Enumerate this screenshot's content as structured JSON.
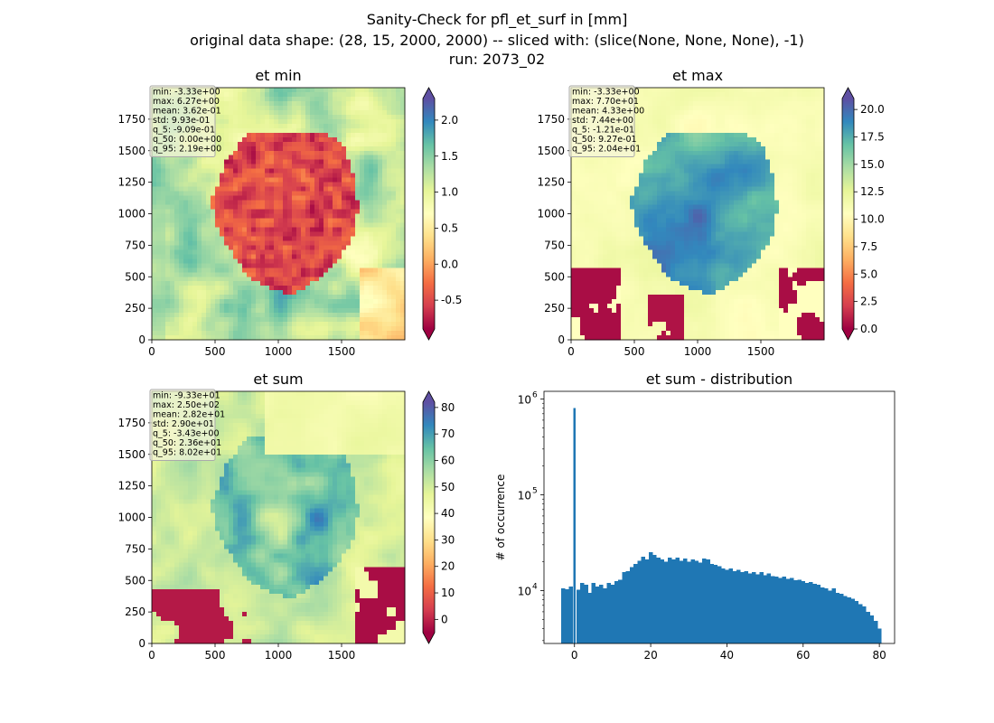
{
  "figure": {
    "title_lines": [
      "Sanity-Check for pfl_et_surf in [mm]",
      "original data shape: (28, 15, 2000, 2000) -- sliced with: (slice(None, None, None), -1)",
      "run: 2073_02"
    ]
  },
  "chart_data": [
    {
      "type": "heatmap",
      "title": "et min",
      "colormap": "Spectral",
      "x_ticks": [
        "0",
        "500",
        "1000",
        "1500"
      ],
      "y_ticks": [
        "0",
        "250",
        "500",
        "750",
        "1000",
        "1250",
        "1500",
        "1750"
      ],
      "xlim": [
        0,
        2000
      ],
      "ylim": [
        0,
        2000
      ],
      "color_range": [
        -0.9,
        2.3
      ],
      "colorbar_ticks": [
        "-0.5",
        "0.0",
        "0.5",
        "1.0",
        "1.5",
        "2.0"
      ],
      "colorbar_tick_values": [
        -0.5,
        0.0,
        0.5,
        1.0,
        1.5,
        2.0
      ],
      "stats": [
        "min: -3.33e+00",
        "max: 6.27e+00",
        "mean: 3.62e-01",
        "std: 9.93e-01",
        "q_5: -9.09e-01",
        "q_50: 0.00e+00",
        "q_95: 2.19e+00"
      ]
    },
    {
      "type": "heatmap",
      "title": "et max",
      "colormap": "Spectral",
      "x_ticks": [
        "0",
        "500",
        "1000",
        "1500"
      ],
      "y_ticks": [
        "0",
        "250",
        "500",
        "750",
        "1000",
        "1250",
        "1500",
        "1750"
      ],
      "xlim": [
        0,
        2000
      ],
      "ylim": [
        0,
        2000
      ],
      "color_range": [
        0,
        21
      ],
      "colorbar_ticks": [
        "0.0",
        "2.5",
        "5.0",
        "7.5",
        "10.0",
        "12.5",
        "15.0",
        "17.5",
        "20.0"
      ],
      "colorbar_tick_values": [
        0,
        2.5,
        5,
        7.5,
        10,
        12.5,
        15,
        17.5,
        20
      ],
      "stats": [
        "min: -3.33e+00",
        "max: 7.70e+01",
        "mean: 4.33e+00",
        "std: 7.44e+00",
        "q_5: -1.21e-01",
        "q_50: 9.27e-01",
        "q_95: 2.04e+01"
      ]
    },
    {
      "type": "heatmap",
      "title": "et sum",
      "colormap": "Spectral",
      "x_ticks": [
        "0",
        "500",
        "1000",
        "1500"
      ],
      "y_ticks": [
        "0",
        "250",
        "500",
        "750",
        "1000",
        "1250",
        "1500",
        "1750"
      ],
      "xlim": [
        0,
        2000
      ],
      "ylim": [
        0,
        2000
      ],
      "color_range": [
        -5,
        82
      ],
      "colorbar_ticks": [
        "0",
        "10",
        "20",
        "30",
        "40",
        "50",
        "60",
        "70",
        "80"
      ],
      "colorbar_tick_values": [
        0,
        10,
        20,
        30,
        40,
        50,
        60,
        70,
        80
      ],
      "stats": [
        "min: -9.33e+01",
        "max: 2.50e+02",
        "mean: 2.82e+01",
        "std: 2.90e+01",
        "q_5: -3.43e+00",
        "q_50: 2.36e+01",
        "q_95: 8.02e+01"
      ]
    },
    {
      "type": "bar",
      "title": "et sum - distribution",
      "ylabel": "# of occurrence",
      "xlabel": "",
      "yscale": "log",
      "ylim": [
        2800,
        1200000
      ],
      "xlim": [
        -8,
        84
      ],
      "x_ticks": [
        "0",
        "20",
        "40",
        "60",
        "80"
      ],
      "x_tick_values": [
        0,
        20,
        40,
        60,
        80
      ],
      "y_ticks": [
        "10",
        "10",
        "10"
      ],
      "y_tick_exponents": [
        "4",
        "5",
        "6"
      ],
      "y_tick_values": [
        10000,
        100000,
        1000000
      ],
      "bar_color": "#1f77b4",
      "spike": {
        "x": 0,
        "count": 800000
      },
      "bins": [
        [
          -3,
          10500
        ],
        [
          -2,
          10300
        ],
        [
          -1,
          11000
        ],
        [
          1,
          10200
        ],
        [
          2,
          12000
        ],
        [
          3,
          11500
        ],
        [
          4,
          9500
        ],
        [
          5,
          12000
        ],
        [
          6,
          11000
        ],
        [
          7,
          11500
        ],
        [
          8,
          10500
        ],
        [
          9,
          12000
        ],
        [
          10,
          11500
        ],
        [
          11,
          12500
        ],
        [
          12,
          13000
        ],
        [
          13,
          15500
        ],
        [
          14,
          16000
        ],
        [
          15,
          17500
        ],
        [
          16,
          19000
        ],
        [
          17,
          20500
        ],
        [
          18,
          22500
        ],
        [
          19,
          21000
        ],
        [
          20,
          25000
        ],
        [
          21,
          23500
        ],
        [
          22,
          22000
        ],
        [
          23,
          21000
        ],
        [
          24,
          20000
        ],
        [
          25,
          22000
        ],
        [
          26,
          21000
        ],
        [
          27,
          22000
        ],
        [
          28,
          20500
        ],
        [
          29,
          21500
        ],
        [
          30,
          20000
        ],
        [
          31,
          21000
        ],
        [
          32,
          20500
        ],
        [
          33,
          19500
        ],
        [
          34,
          21500
        ],
        [
          35,
          21000
        ],
        [
          36,
          19000
        ],
        [
          37,
          18500
        ],
        [
          38,
          18000
        ],
        [
          39,
          17000
        ],
        [
          40,
          16500
        ],
        [
          41,
          17000
        ],
        [
          42,
          16000
        ],
        [
          43,
          16500
        ],
        [
          44,
          15500
        ],
        [
          45,
          16000
        ],
        [
          46,
          15000
        ],
        [
          47,
          15500
        ],
        [
          48,
          14800
        ],
        [
          49,
          15500
        ],
        [
          50,
          14500
        ],
        [
          51,
          15000
        ],
        [
          52,
          14200
        ],
        [
          53,
          14000
        ],
        [
          54,
          13500
        ],
        [
          55,
          14000
        ],
        [
          56,
          13200
        ],
        [
          57,
          13500
        ],
        [
          58,
          12800
        ],
        [
          59,
          13000
        ],
        [
          60,
          12500
        ],
        [
          61,
          12000
        ],
        [
          62,
          12200
        ],
        [
          63,
          11800
        ],
        [
          64,
          11500
        ],
        [
          65,
          10800
        ],
        [
          66,
          10500
        ],
        [
          67,
          10000
        ],
        [
          68,
          10500
        ],
        [
          69,
          9500
        ],
        [
          70,
          9200
        ],
        [
          71,
          8800
        ],
        [
          72,
          8500
        ],
        [
          73,
          8200
        ],
        [
          74,
          7800
        ],
        [
          75,
          7200
        ],
        [
          76,
          6800
        ],
        [
          77,
          6000
        ],
        [
          78,
          5500
        ],
        [
          79,
          4800
        ],
        [
          80,
          4000
        ]
      ]
    }
  ]
}
